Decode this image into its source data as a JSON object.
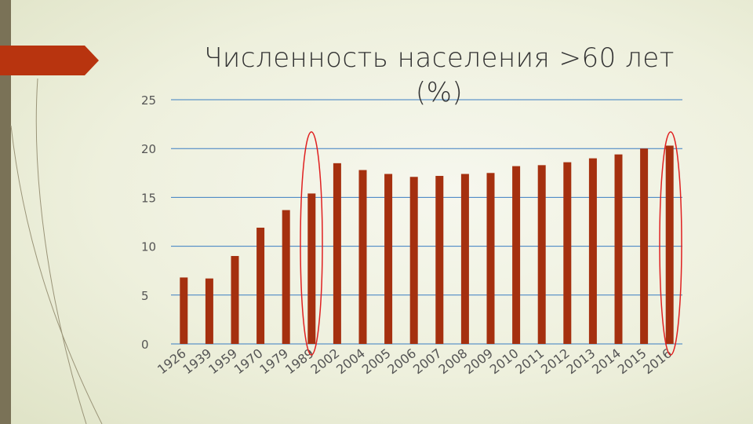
{
  "chart_data": {
    "type": "bar",
    "title": "Численность населения >60 лет (%)",
    "categories": [
      "1926",
      "1939",
      "1959",
      "1970",
      "1979",
      "1989",
      "2002",
      "2004",
      "2005",
      "2006",
      "2007",
      "2008",
      "2009",
      "2010",
      "2011",
      "2012",
      "2013",
      "2014",
      "2015",
      "2016"
    ],
    "values": [
      6.8,
      6.7,
      9.0,
      11.9,
      13.7,
      15.4,
      18.5,
      17.8,
      17.4,
      17.1,
      17.2,
      17.4,
      17.5,
      18.2,
      18.3,
      18.6,
      19.0,
      19.4,
      20.0,
      20.3
    ],
    "color": "#a5300f",
    "ylim": [
      0,
      25
    ],
    "yticks": [
      0,
      5,
      10,
      15,
      20,
      25
    ],
    "grid": true
  }
}
